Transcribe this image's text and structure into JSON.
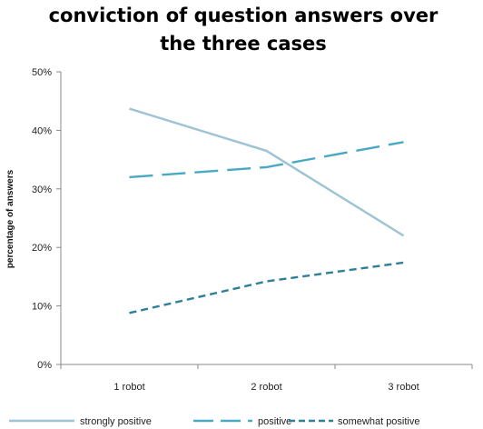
{
  "chart_data": {
    "type": "line",
    "title_lines": [
      "conviction of question answers over",
      "the three cases"
    ],
    "xlabel": "",
    "ylabel": "percentage of answers",
    "categories": [
      "1 robot",
      "2 robot",
      "3 robot"
    ],
    "yticks": [
      "0%",
      "10%",
      "20%",
      "30%",
      "40%",
      "50%"
    ],
    "ylim": [
      0,
      50
    ],
    "grid": false,
    "legend_position": "bottom",
    "series": [
      {
        "name": "strongly positive",
        "values": [
          43.7,
          36.5,
          22.0
        ],
        "color": "#9dc3d4",
        "dash": "solid"
      },
      {
        "name": "positive",
        "values": [
          32.0,
          33.7,
          38.0
        ],
        "color": "#4aa9c2",
        "dash": "long-dash"
      },
      {
        "name": "somewhat positive",
        "values": [
          8.8,
          14.2,
          17.4
        ],
        "color": "#2f7f96",
        "dash": "short-dash"
      }
    ]
  }
}
